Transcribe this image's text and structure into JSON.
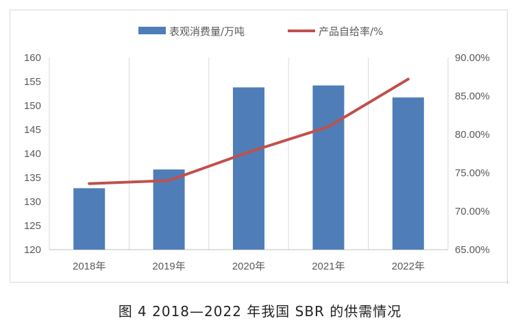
{
  "caption": "图 4  2018—2022 年我国 SBR 的供需情况",
  "chart_data": {
    "type": "bar",
    "title": "",
    "categories": [
      "2018年",
      "2019年",
      "2020年",
      "2021年",
      "2022年"
    ],
    "series": [
      {
        "name": "表观消费量/万吨",
        "type": "bar",
        "axis": "left",
        "color": "#4f7db8",
        "values": [
          132.8,
          136.7,
          153.8,
          154.2,
          151.7
        ]
      },
      {
        "name": "产品自给率/%",
        "type": "line",
        "axis": "right",
        "color": "#c0504d",
        "values": [
          73.6,
          74.0,
          77.7,
          81.0,
          87.2
        ]
      }
    ],
    "y_left": {
      "min": 120,
      "max": 160,
      "ticks": [
        "120",
        "125",
        "130",
        "135",
        "140",
        "145",
        "150",
        "155",
        "160"
      ]
    },
    "y_right": {
      "min": 65,
      "max": 90,
      "ticks": [
        "65.00%",
        "70.00%",
        "75.00%",
        "80.00%",
        "85.00%",
        "90.00%"
      ]
    },
    "grid": "vertical",
    "legend_position": "top"
  }
}
